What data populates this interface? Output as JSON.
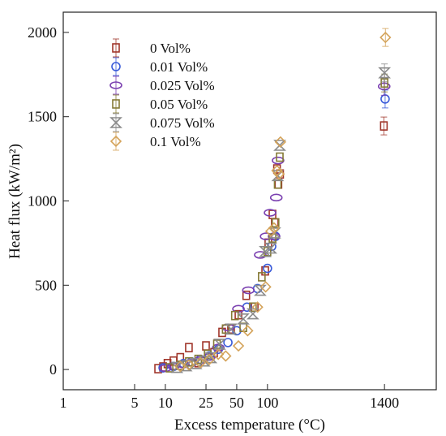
{
  "chart_data": {
    "type": "scatter",
    "title": "",
    "xlabel": "Excess temperature (°C)",
    "ylabel": "Heat flux (kW/m²)",
    "xscale": "log",
    "xlim": [
      1,
      4500
    ],
    "ylim": [
      -120,
      2120
    ],
    "xticks": [
      1,
      5,
      10,
      25,
      50,
      100,
      1400
    ],
    "yticks": [
      0,
      500,
      1000,
      1500,
      2000
    ],
    "legend_position": "top-left",
    "grid": false,
    "series": [
      {
        "name": "0 Vol%",
        "marker": "square",
        "color": "#a0352a",
        "x": [
          8.5,
          9.5,
          10.5,
          12,
          14,
          17,
          21,
          25,
          30,
          36,
          44,
          52,
          62,
          75,
          95,
          102,
          112,
          118,
          124,
          128,
          133,
          1380
        ],
        "y": [
          5,
          15,
          35,
          50,
          70,
          130,
          40,
          140,
          100,
          220,
          240,
          325,
          440,
          370,
          585,
          750,
          920,
          870,
          1190,
          1100,
          1160,
          1445
        ]
      },
      {
        "name": "0.01 Vol%",
        "marker": "circle",
        "color": "#3a5bd9",
        "x": [
          9.5,
          12,
          15,
          18,
          22,
          27,
          33,
          41,
          50,
          63,
          80,
          100,
          110,
          120,
          1420
        ],
        "y": [
          10,
          18,
          35,
          45,
          60,
          80,
          120,
          160,
          230,
          370,
          480,
          600,
          730,
          790,
          1605
        ]
      },
      {
        "name": "0.025 Vol%",
        "marker": "ellipse",
        "color": "#7a3fb0",
        "x": [
          10,
          12,
          15,
          18,
          22,
          27,
          33,
          41,
          52,
          65,
          85,
          97,
          106,
          116,
          122,
          127,
          1390
        ],
        "y": [
          8,
          20,
          30,
          40,
          55,
          75,
          130,
          250,
          360,
          470,
          680,
          790,
          930,
          790,
          1020,
          1240,
          1680
        ]
      },
      {
        "name": "0.05 Vol%",
        "marker": "square",
        "color": "#857a35",
        "x": [
          11,
          14,
          17,
          21,
          26,
          32,
          39,
          48,
          58,
          72,
          88,
          100,
          112,
          120,
          126,
          132,
          1400
        ],
        "y": [
          10,
          25,
          45,
          60,
          90,
          150,
          240,
          320,
          250,
          370,
          550,
          700,
          780,
          870,
          1100,
          1260,
          1700
        ]
      },
      {
        "name": "0.075 Vol%",
        "marker": "hourglass",
        "color": "#8b8b8b",
        "x": [
          13,
          16,
          20,
          24,
          28,
          34,
          44,
          58,
          72,
          85,
          95,
          108,
          118,
          126,
          132,
          1400
        ],
        "y": [
          12,
          22,
          35,
          50,
          70,
          150,
          240,
          300,
          330,
          470,
          700,
          720,
          810,
          1150,
          1330,
          1760
        ]
      },
      {
        "name": "0.1 Vol%",
        "marker": "diamond",
        "color": "#d4a35a",
        "x": [
          14,
          17,
          22,
          27,
          33,
          39,
          52,
          64,
          80,
          96,
          108,
          116,
          124,
          130,
          134,
          1430
        ],
        "y": [
          18,
          28,
          40,
          60,
          90,
          80,
          140,
          230,
          370,
          490,
          820,
          840,
          1180,
          1160,
          1350,
          1970
        ]
      }
    ]
  }
}
